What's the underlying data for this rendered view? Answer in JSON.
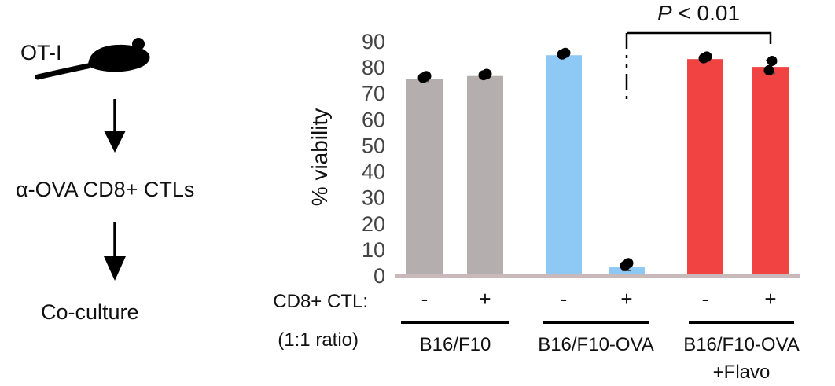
{
  "workflow": {
    "step1": "OT-I",
    "step2": "α-OVA CD8+ CTLs",
    "step3": "Co-culture"
  },
  "chart_data": {
    "type": "bar",
    "title": "",
    "ylabel": "% viability",
    "xlabel": "",
    "ylim": [
      0,
      90
    ],
    "yticks": [
      0,
      10,
      20,
      30,
      40,
      50,
      60,
      70,
      80,
      90
    ],
    "categories": [
      "B16/F10 -",
      "B16/F10 +",
      "B16/F10-OVA -",
      "B16/F10-OVA +",
      "B16/F10-OVA+Flavo -",
      "B16/F10-OVA+Flavo +"
    ],
    "cd8_row_label": "CD8+ CTL:",
    "ratio_label": "(1:1 ratio)",
    "cd8_status": [
      "-",
      "+",
      "-",
      "+",
      "-",
      "+"
    ],
    "values": [
      75.5,
      76.5,
      84.5,
      3.0,
      83.0,
      80.0
    ],
    "errors": [
      1.0,
      0.6,
      0.5,
      1.2,
      0.8,
      2.5
    ],
    "points": [
      [
        76.5,
        75.8
      ],
      [
        77.3,
        76.8
      ],
      [
        85.4,
        84.8
      ],
      [
        4.6,
        3.6
      ],
      [
        84.0,
        83.3
      ],
      [
        82.3,
        78.7
      ]
    ],
    "colors": [
      "#b4aeae",
      "#b4aeae",
      "#8ec8f4",
      "#8ec8f4",
      "#f24343",
      "#f24343"
    ],
    "groups": [
      {
        "label": "B16/F10"
      },
      {
        "label": "B16/F10-OVA"
      },
      {
        "label": "B16/F10-OVA",
        "label2": "+Flavo"
      }
    ],
    "annotation": {
      "p_italic": "P",
      "p_rest": " < 0.01",
      "from_bar": 3,
      "to_bar": 5
    }
  }
}
